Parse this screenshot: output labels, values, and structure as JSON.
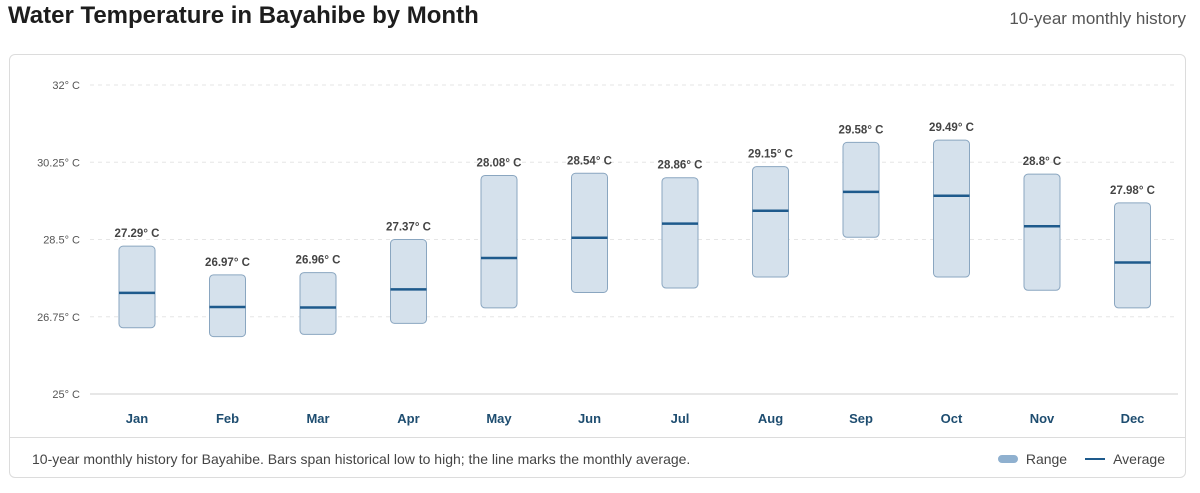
{
  "header": {
    "title": "Water Temperature in Bayahibe by Month",
    "subtitle": "10-year monthly history"
  },
  "footer": {
    "note": "10-year monthly history for Bayahibe. Bars span historical low to high; the line marks the monthly average.",
    "legend_range": "Range",
    "legend_average": "Average"
  },
  "colors": {
    "bar_fill": "#d5e1ec",
    "bar_stroke": "#8aa6c0",
    "average_line": "#1e5a8c",
    "grid": "#e6e6e6"
  },
  "chart_data": {
    "type": "bar",
    "categories": [
      "Jan",
      "Feb",
      "Mar",
      "Apr",
      "May",
      "Jun",
      "Jul",
      "Aug",
      "Sep",
      "Oct",
      "Nov",
      "Dec"
    ],
    "series": [
      {
        "name": "Range",
        "low": [
          26.5,
          26.3,
          26.35,
          26.6,
          26.95,
          27.3,
          27.4,
          27.65,
          28.55,
          27.65,
          27.35,
          26.95
        ],
        "high": [
          28.35,
          27.7,
          27.75,
          28.5,
          29.95,
          30.0,
          29.9,
          30.15,
          30.7,
          30.75,
          29.98,
          29.33
        ]
      },
      {
        "name": "Average",
        "values": [
          27.29,
          26.97,
          26.96,
          27.37,
          28.08,
          28.54,
          28.86,
          29.15,
          29.58,
          29.49,
          28.8,
          27.98
        ]
      }
    ],
    "labels": [
      "27.29° C",
      "26.97° C",
      "26.96° C",
      "27.37° C",
      "28.08° C",
      "28.54° C",
      "28.86° C",
      "29.15° C",
      "29.58° C",
      "29.49° C",
      "28.8° C",
      "27.98° C"
    ],
    "yticks": [
      25,
      26.75,
      28.5,
      30.25,
      32
    ],
    "ytick_labels": [
      "25° C",
      "26.75° C",
      "28.5° C",
      "30.25° C",
      "32° C"
    ],
    "ylim": [
      25,
      32
    ],
    "grid": true,
    "legend": "bottom-right"
  }
}
